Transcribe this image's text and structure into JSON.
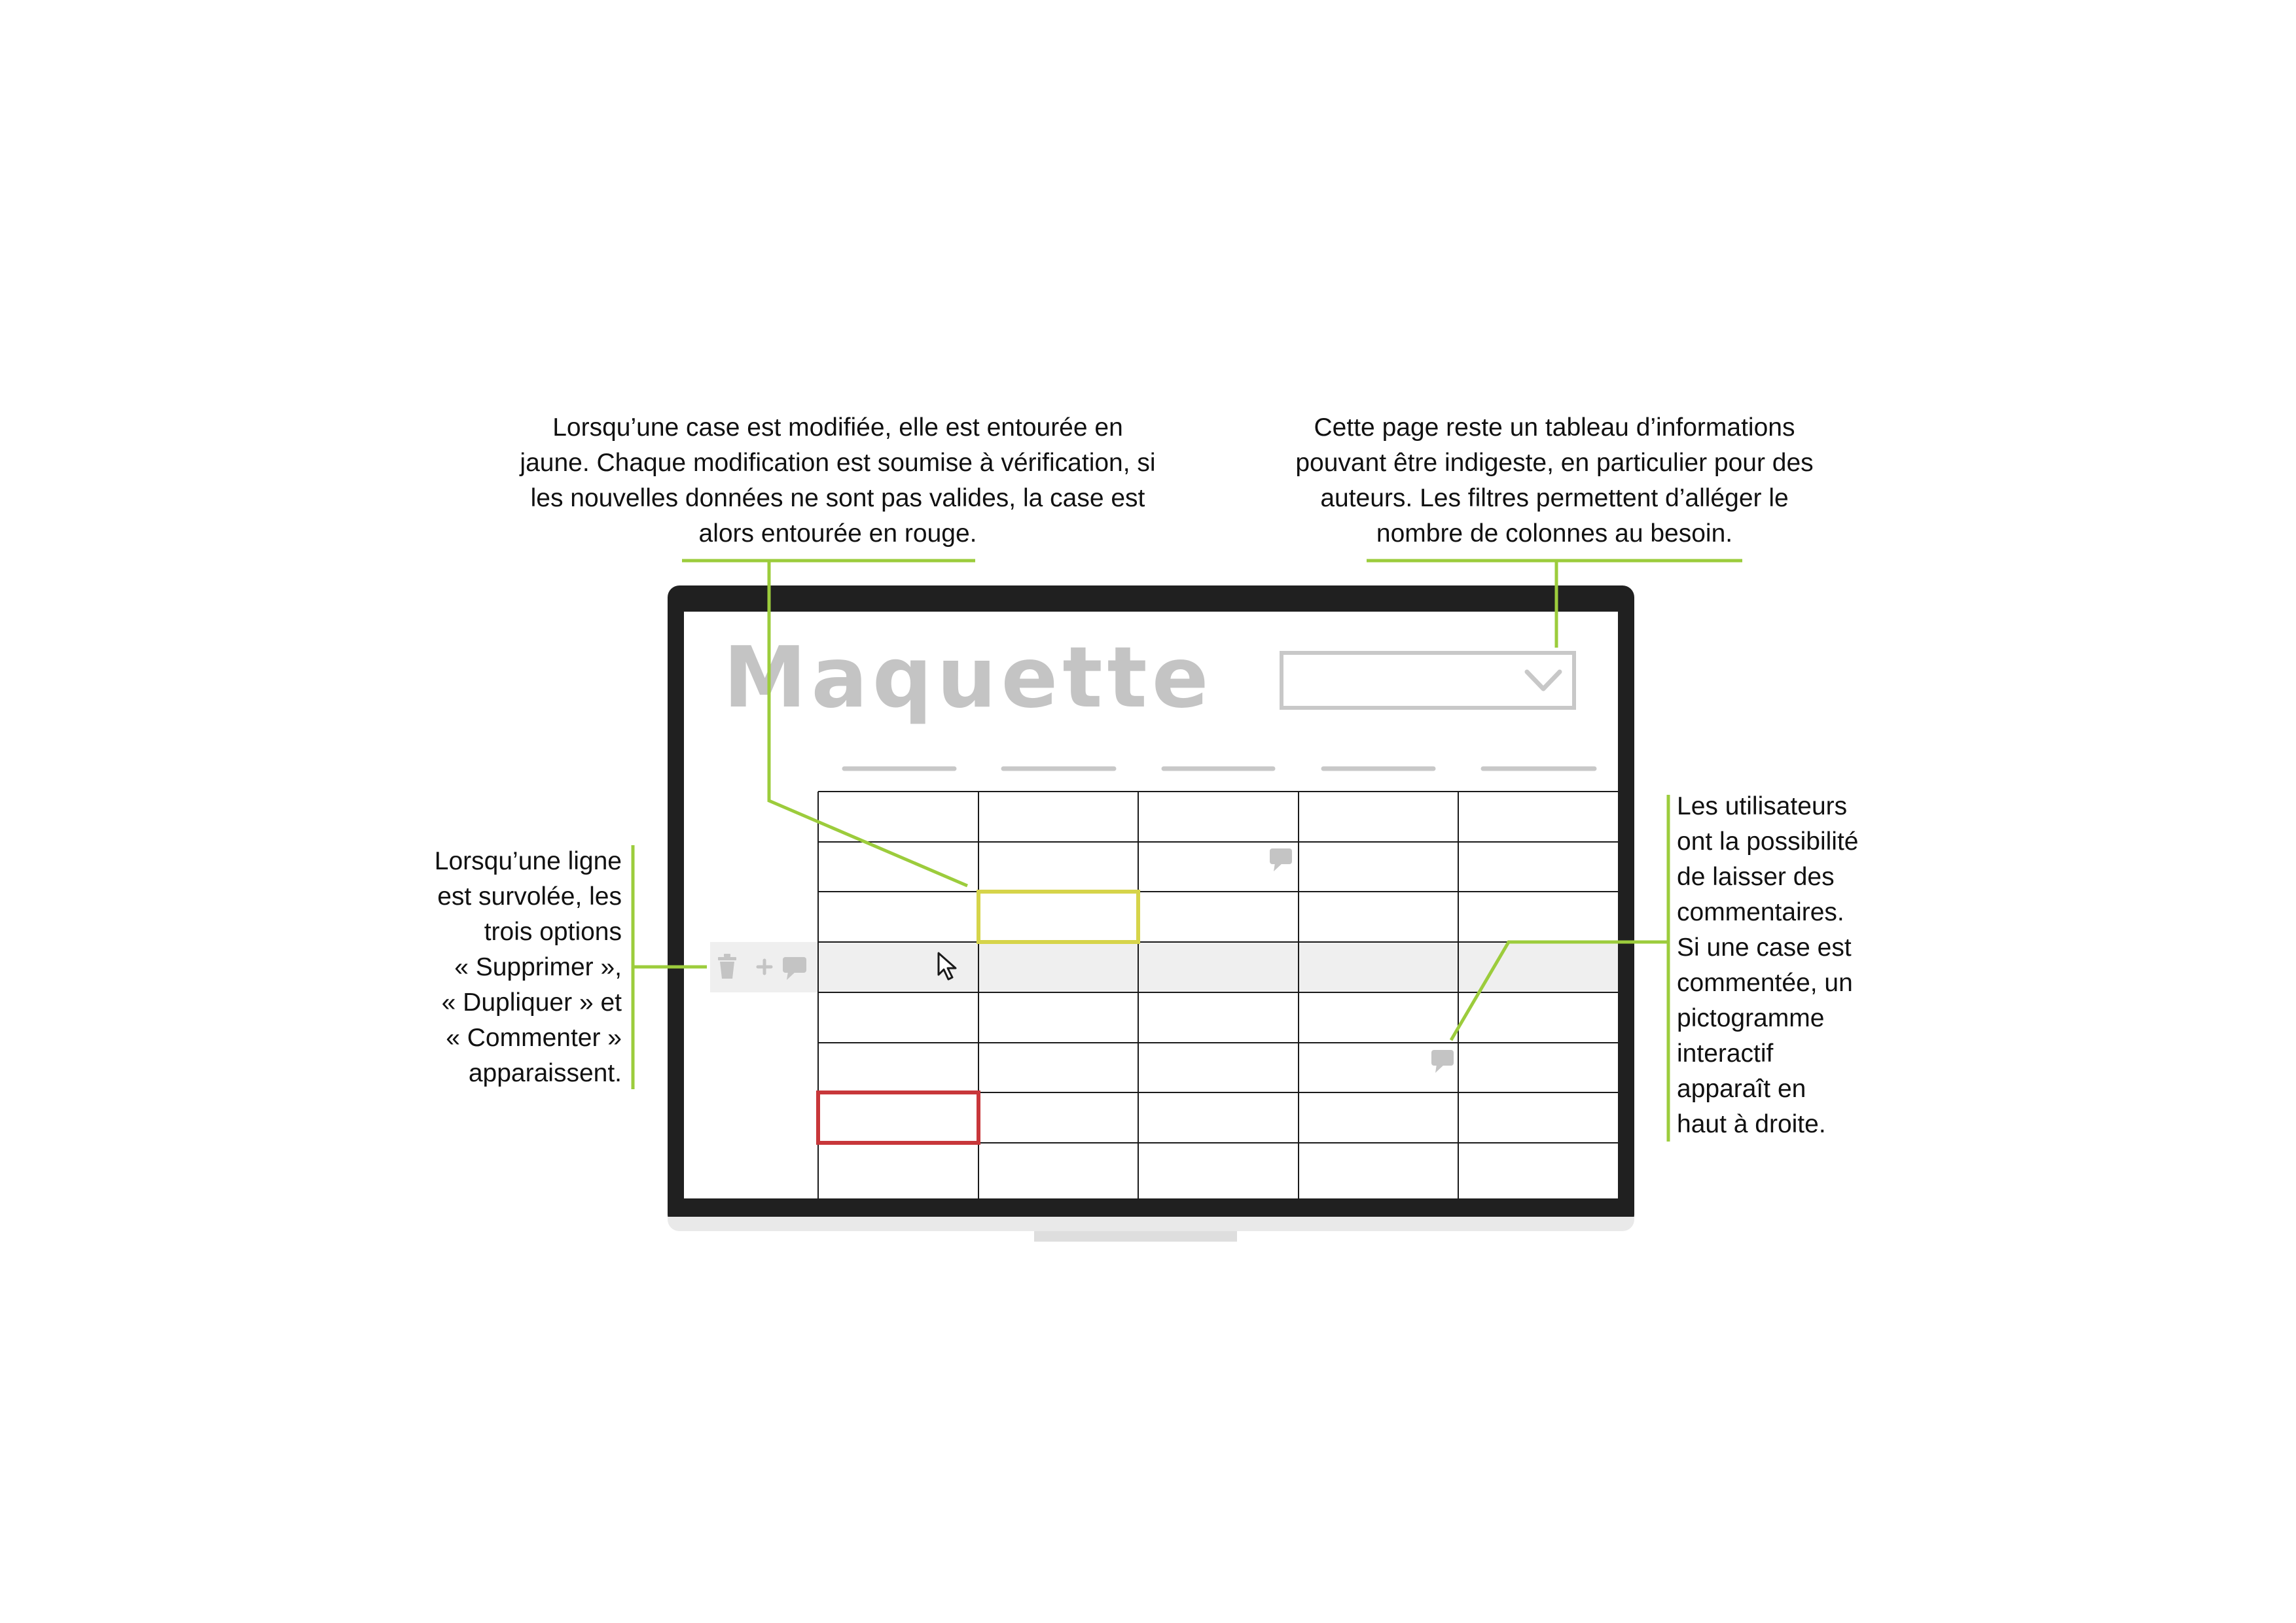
{
  "annotations": {
    "top_left": [
      "Lorsqu’une case est modifiée, elle est entourée en",
      "jaune. Chaque modification est soumise à vérification, si",
      "les nouvelles données ne sont pas valides, la case est",
      "alors entourée en rouge."
    ],
    "top_right": [
      "Cette page reste un tableau d’informations",
      "pouvant être indigeste, en particulier pour des",
      "auteurs. Les filtres permettent d’alléger le",
      "nombre de colonnes au besoin."
    ],
    "left": [
      "Lorsqu’une ligne",
      "est survolée, les",
      "trois options",
      "« Supprimer »,",
      "« Dupliquer » et",
      "« Commenter »",
      "apparaissent."
    ],
    "right": [
      "Les utilisateurs",
      "ont la possibilité",
      "de laisser des",
      "commentaires.",
      "Si une case est",
      "commentée, un",
      "pictogramme",
      "interactif",
      "apparaît en",
      "haut à droite."
    ]
  },
  "mockup": {
    "title": "Maquette",
    "grid": {
      "columns": 5,
      "rows": 8,
      "modified_cell": {
        "row": 2,
        "col": 1
      },
      "invalid_cell": {
        "row": 6,
        "col": 0
      },
      "hovered_row": 3,
      "commented_cells": [
        {
          "row": 1,
          "col": 2
        },
        {
          "row": 5,
          "col": 3
        }
      ]
    },
    "row_actions": [
      "trash-icon",
      "plus-icon",
      "comment-icon"
    ]
  },
  "colors": {
    "accent_green": "#9ccc3c",
    "modified_yellow": "#d6d44a",
    "invalid_red": "#c8373a",
    "monitor_frame": "#202020",
    "mockup_grey": "#c4c4c4",
    "hover_row": "#efefef"
  }
}
